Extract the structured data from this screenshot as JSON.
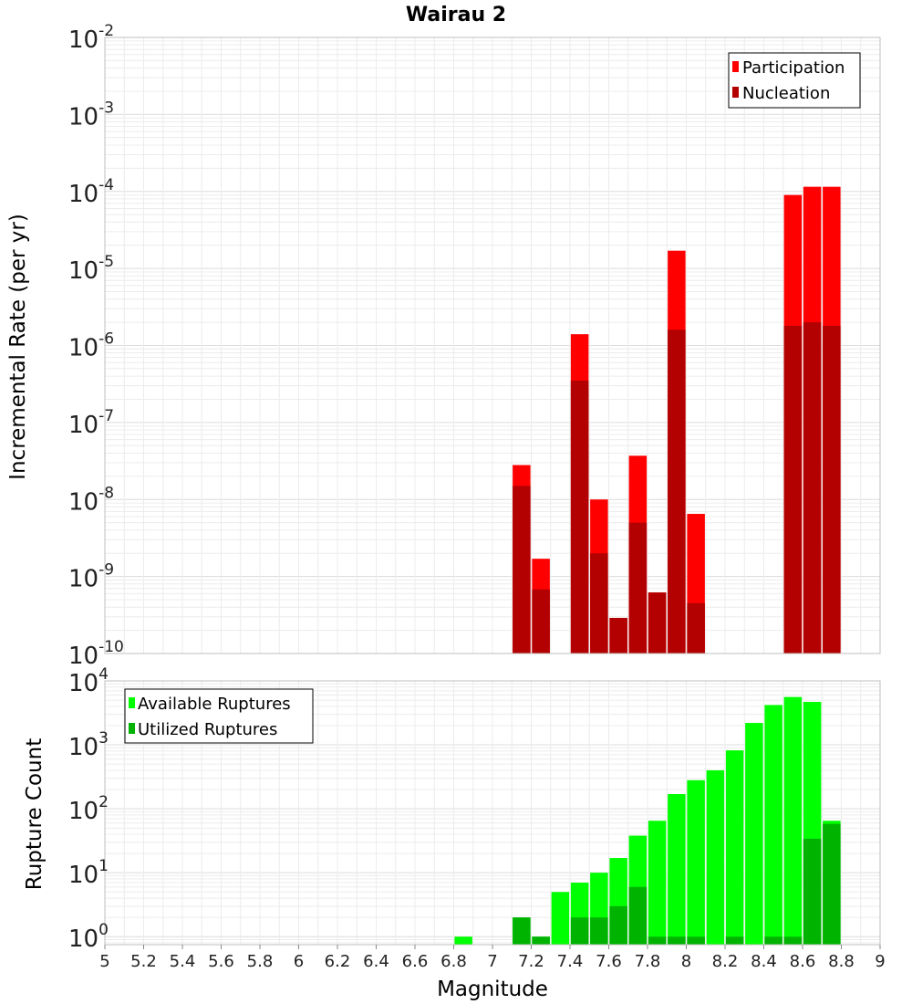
{
  "chart_data": [
    {
      "type": "bar",
      "title": "Wairau 2",
      "xlabel": "",
      "ylabel": "Incremental Rate (per yr)",
      "yscale": "log",
      "xlim": [
        5,
        9
      ],
      "ylim": [
        1e-10,
        0.01
      ],
      "y_tick_exponents": [
        "-2",
        "-3",
        "-4",
        "-5",
        "-6",
        "-7",
        "-8",
        "-9",
        "-10"
      ],
      "y_tick_base": "10",
      "grid": true,
      "legend_position": "top-right",
      "x": [
        7.15,
        7.25,
        7.45,
        7.55,
        7.65,
        7.75,
        7.85,
        7.95,
        8.05,
        8.55,
        8.65,
        8.75
      ],
      "series": [
        {
          "name": "Participation",
          "color": "#ff0000",
          "values": [
            2.8e-08,
            1.7e-09,
            1.4e-06,
            1e-08,
            2.9e-10,
            3.7e-08,
            6.2e-10,
            1.7e-05,
            6.5e-09,
            9e-05,
            0.000115,
            0.000115
          ]
        },
        {
          "name": "Nucleation",
          "color": "#b30000",
          "values": [
            1.5e-08,
            6.8e-10,
            3.5e-07,
            2e-09,
            2.9e-10,
            5e-09,
            6.2e-10,
            1.6e-06,
            4.5e-10,
            1.8e-06,
            2e-06,
            1.8e-06
          ]
        }
      ]
    },
    {
      "type": "bar",
      "title": "",
      "xlabel": "Magnitude",
      "ylabel": "Rupture Count",
      "yscale": "log",
      "xlim": [
        5,
        9
      ],
      "ylim": [
        0.75,
        10000
      ],
      "y_tick_exponents": [
        "4",
        "3",
        "2",
        "1",
        "0"
      ],
      "y_tick_base": "10",
      "x_tick_labels": [
        "5",
        "5.2",
        "5.4",
        "5.6",
        "5.8",
        "6",
        "6.2",
        "6.4",
        "6.6",
        "6.8",
        "7",
        "7.2",
        "7.4",
        "7.6",
        "7.8",
        "8",
        "8.2",
        "8.4",
        "8.6",
        "8.8",
        "9"
      ],
      "grid": true,
      "legend_position": "top-left",
      "x": [
        6.85,
        7.15,
        7.25,
        7.35,
        7.45,
        7.55,
        7.65,
        7.75,
        7.85,
        7.95,
        8.05,
        8.15,
        8.25,
        8.35,
        8.45,
        8.55,
        8.65,
        8.75
      ],
      "series": [
        {
          "name": "Available Ruptures",
          "color": "#00ff00",
          "values": [
            1,
            2,
            1,
            5,
            7,
            10,
            17,
            38,
            65,
            170,
            280,
            400,
            820,
            2200,
            4200,
            5600,
            4700,
            65
          ]
        },
        {
          "name": "Utilized Ruptures",
          "color": "#00b300",
          "values": [
            0,
            2,
            1,
            0,
            2,
            2,
            3,
            6,
            1,
            1,
            1,
            0,
            1,
            0,
            1,
            1,
            34,
            58
          ]
        }
      ]
    }
  ]
}
